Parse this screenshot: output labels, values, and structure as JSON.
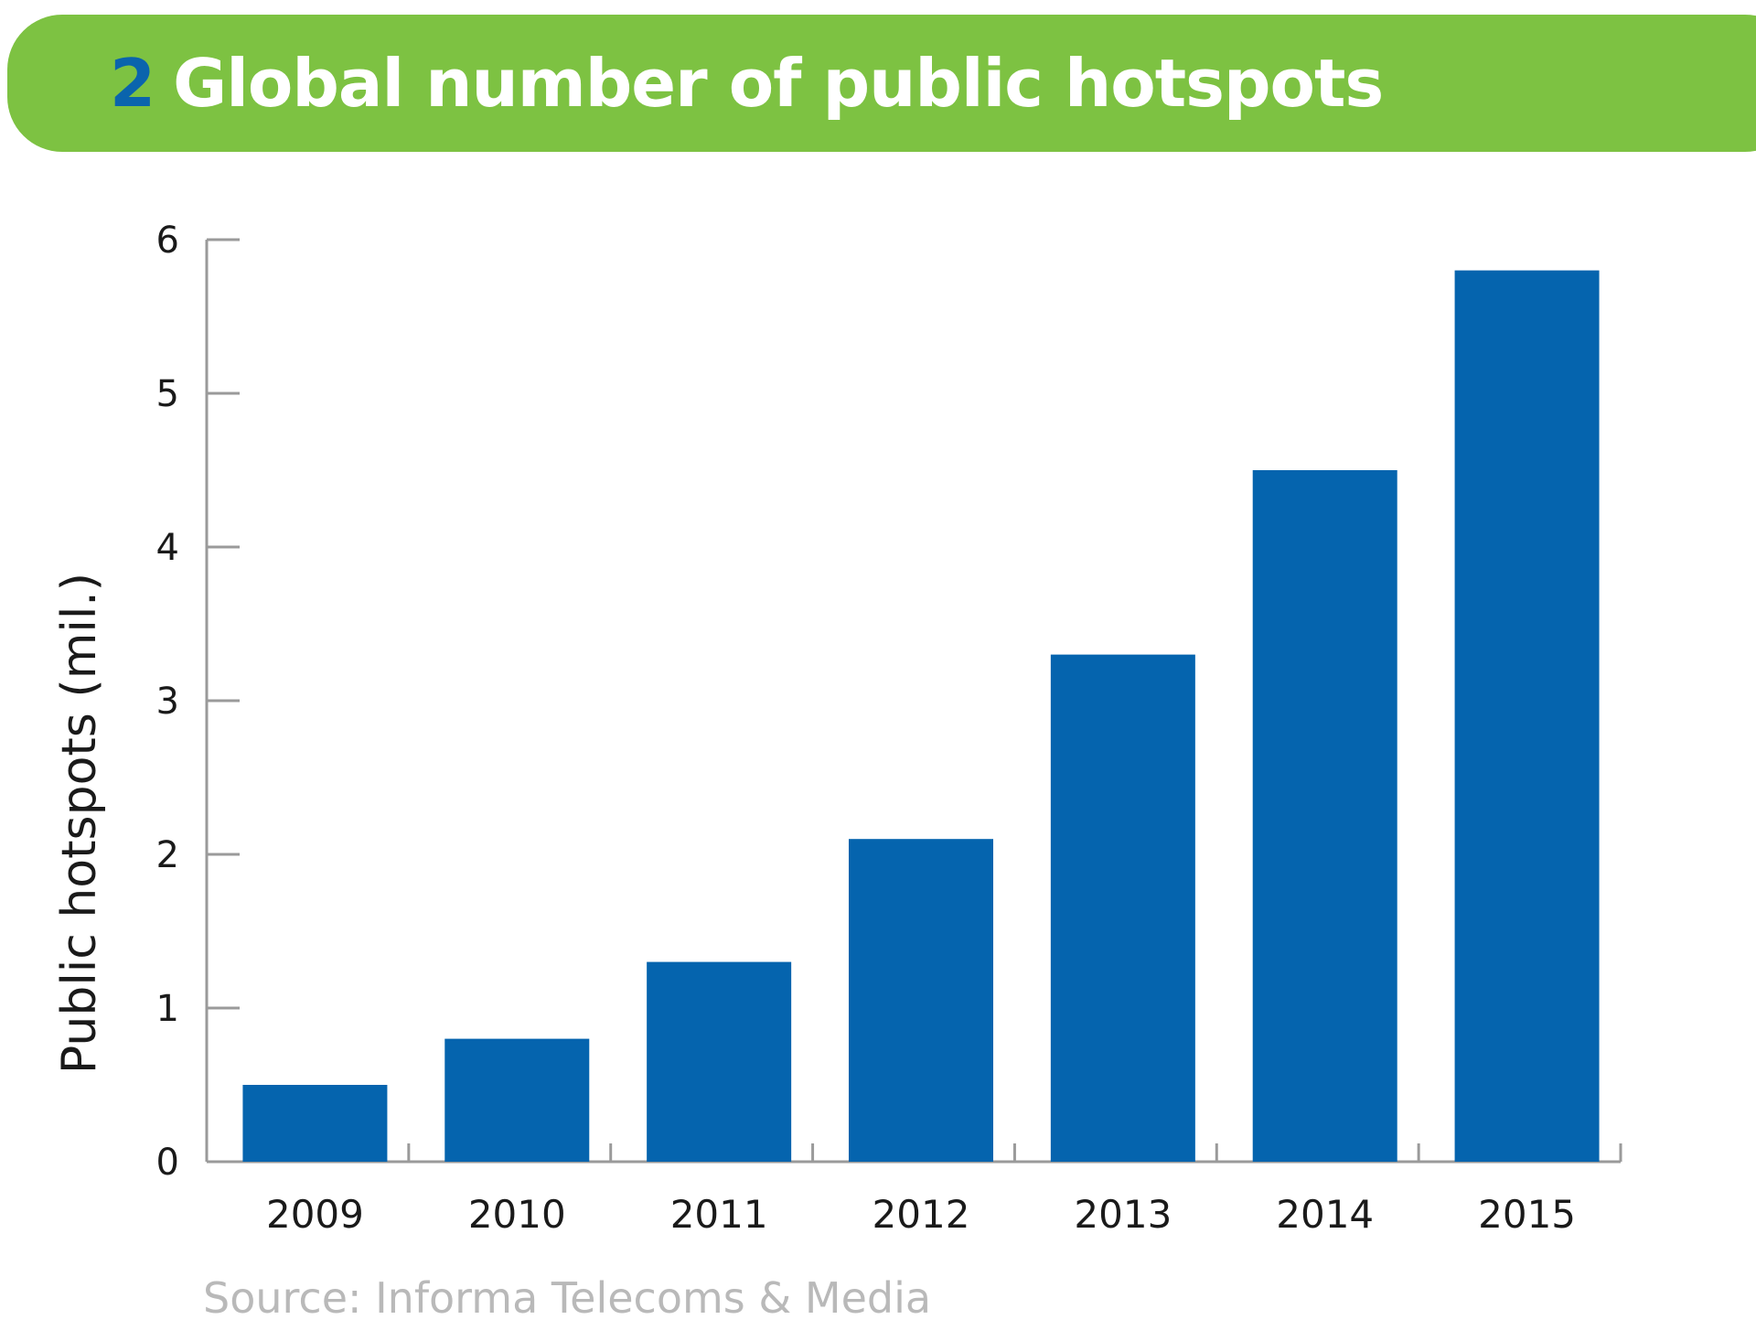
{
  "header": {
    "number": "2",
    "title": "Global number of public hotspots"
  },
  "colors": {
    "header_bg": "#7dc242",
    "header_number": "#0a64ad",
    "bar": "#0564ae",
    "axis": "#9a9a9a",
    "source_text": "#b9b9b9"
  },
  "chart_data": {
    "type": "bar",
    "categories": [
      "2009",
      "2010",
      "2011",
      "2012",
      "2013",
      "2014",
      "2015"
    ],
    "values": [
      0.5,
      0.8,
      1.3,
      2.1,
      3.3,
      4.5,
      5.8
    ],
    "ylabel": "Public hotspots (mil.)",
    "xlabel": "",
    "ylim": [
      0,
      6
    ],
    "yticks": [
      "0",
      "1",
      "2",
      "3",
      "4",
      "5",
      "6"
    ],
    "grid": false,
    "legend": "none"
  },
  "source": "Source: Informa Telecoms & Media"
}
